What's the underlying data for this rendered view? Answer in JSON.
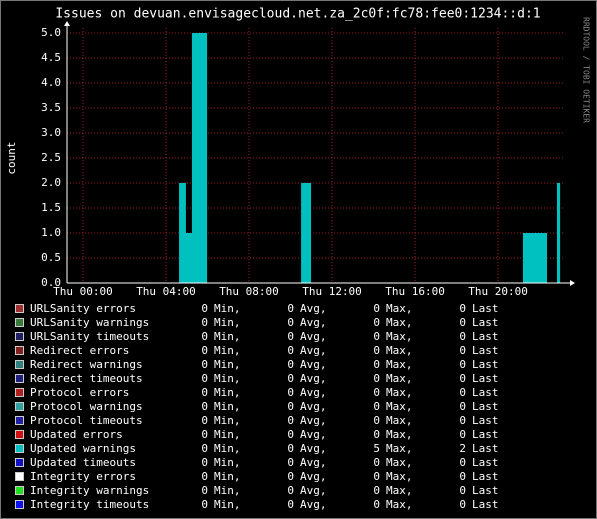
{
  "chart_data": {
    "type": "area",
    "title": "Issues on devuan.envisagecloud.net.za_2c0f:fc78:fee0:1234::d:1",
    "y_label": "count",
    "watermark": "RRDTOOL / TOBI OETIKER",
    "xlim": [
      -0.77,
      23.13
    ],
    "xticks": [
      {
        "value": 0,
        "label": "Thu 00:00"
      },
      {
        "value": 4,
        "label": "Thu 04:00"
      },
      {
        "value": 8,
        "label": "Thu 08:00"
      },
      {
        "value": 12,
        "label": "Thu 12:00"
      },
      {
        "value": 16,
        "label": "Thu 16:00"
      },
      {
        "value": 20,
        "label": "Thu 20:00"
      }
    ],
    "ylim": [
      0,
      5
    ],
    "yticks": [
      {
        "value": 0,
        "label": "0.0"
      },
      {
        "value": 0.5,
        "label": "0.5"
      },
      {
        "value": 1,
        "label": "1.0"
      },
      {
        "value": 1.5,
        "label": "1.5"
      },
      {
        "value": 2,
        "label": "2.0"
      },
      {
        "value": 2.5,
        "label": "2.5"
      },
      {
        "value": 3,
        "label": "3.0"
      },
      {
        "value": 3.5,
        "label": "3.5"
      },
      {
        "value": 4,
        "label": "4.0"
      },
      {
        "value": 4.5,
        "label": "4.5"
      },
      {
        "value": 5,
        "label": "5.0"
      }
    ],
    "grid": true,
    "series": [
      {
        "name": "Updated warnings",
        "color": "#00c0c0",
        "x": [
          -0.77,
          4.63,
          4.96,
          5.25,
          5.98,
          10.51,
          10.99,
          21.2,
          22.36,
          22.84,
          22.99
        ],
        "values": [
          0,
          2,
          1,
          5,
          0,
          2,
          0,
          1,
          0,
          2,
          0
        ]
      }
    ],
    "legend_columns": [
      "Min,",
      "Avg,",
      "Max,",
      "Last"
    ],
    "legend": [
      {
        "name": "URLSanity errors",
        "color": "#a03030",
        "min": 0,
        "avg": 0,
        "max": 0,
        "last": 0
      },
      {
        "name": "URLSanity warnings",
        "color": "#3a7a3a",
        "min": 0,
        "avg": 0,
        "max": 0,
        "last": 0
      },
      {
        "name": "URLSanity timeouts",
        "color": "#202060",
        "min": 0,
        "avg": 0,
        "max": 0,
        "last": 0
      },
      {
        "name": "Redirect errors",
        "color": "#802020",
        "min": 0,
        "avg": 0,
        "max": 0,
        "last": 0
      },
      {
        "name": "Redirect warnings",
        "color": "#308080",
        "min": 0,
        "avg": 0,
        "max": 0,
        "last": 0
      },
      {
        "name": "Redirect timeouts",
        "color": "#202080",
        "min": 0,
        "avg": 0,
        "max": 0,
        "last": 0
      },
      {
        "name": "Protocol errors",
        "color": "#b02020",
        "min": 0,
        "avg": 0,
        "max": 0,
        "last": 0
      },
      {
        "name": "Protocol warnings",
        "color": "#30a0a0",
        "min": 0,
        "avg": 0,
        "max": 0,
        "last": 0
      },
      {
        "name": "Protocol timeouts",
        "color": "#2020a0",
        "min": 0,
        "avg": 0,
        "max": 0,
        "last": 0
      },
      {
        "name": "Updated errors",
        "color": "#d01010",
        "min": 0,
        "avg": 0,
        "max": 0,
        "last": 0
      },
      {
        "name": "Updated warnings",
        "color": "#00c0c0",
        "min": 0,
        "avg": 0,
        "max": 5,
        "last": 2
      },
      {
        "name": "Updated timeouts",
        "color": "#1010c0",
        "min": 0,
        "avg": 0,
        "max": 0,
        "last": 0
      },
      {
        "name": "Integrity errors",
        "color": "#ffffff",
        "min": 0,
        "avg": 0,
        "max": 0,
        "last": 0
      },
      {
        "name": "Integrity warnings",
        "color": "#20e020",
        "min": 0,
        "avg": 0,
        "max": 0,
        "last": 0
      },
      {
        "name": "Integrity timeouts",
        "color": "#1010f0",
        "min": 0,
        "avg": 0,
        "max": 0,
        "last": 0
      }
    ]
  }
}
